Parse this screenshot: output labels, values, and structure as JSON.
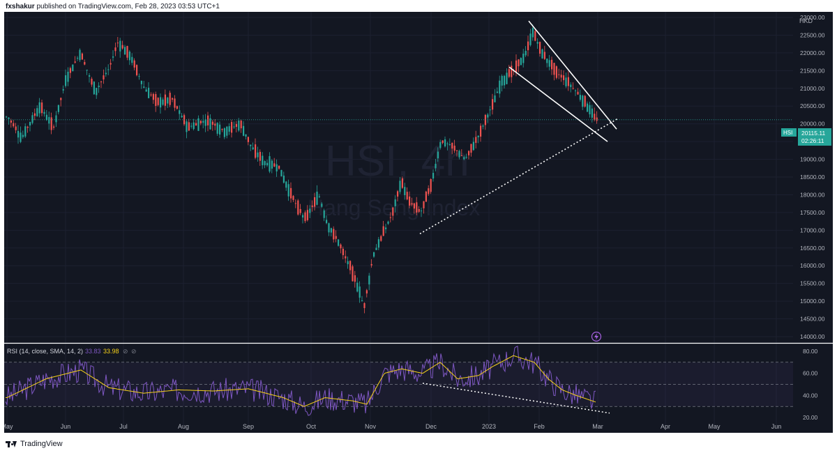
{
  "header": {
    "user": "fxshakur",
    "rest": " published on TradingView.com, Feb 28, 2023 03:53 UTC+1"
  },
  "watermark": {
    "ticker": "HSI, 4h",
    "name": "Hang Seng Index"
  },
  "price_scale": {
    "currency": "HKD",
    "ticks": [
      "23000.00",
      "22500.00",
      "22000.00",
      "21500.00",
      "21000.00",
      "20500.00",
      "20000.00",
      "19500.00",
      "19000.00",
      "18500.00",
      "18000.00",
      "17500.00",
      "17000.00",
      "16500.00",
      "16000.00",
      "15500.00",
      "15000.00",
      "14500.00",
      "14000.00"
    ],
    "current_symbol": "HSI",
    "current_price": "20115.11",
    "countdown": "02:26:11"
  },
  "rsi": {
    "label": "RSI (14, close, SMA, 14, 2)",
    "value": "33.83",
    "ma_value": "33.98",
    "ticks": [
      "80.00",
      "60.00",
      "40.00",
      "20.00"
    ]
  },
  "time_axis": [
    "May",
    "Jun",
    "Jul",
    "Aug",
    "Sep",
    "Oct",
    "Nov",
    "Dec",
    "2023",
    "Feb",
    "Mar",
    "Apr",
    "May",
    "Jun"
  ],
  "footer": {
    "brand": "TradingView"
  },
  "colors": {
    "background": "#131722",
    "up": "#26a69a",
    "down": "#ef5350",
    "rsi_line": "#7e57c2",
    "rsi_ma": "#f7d21a",
    "price_label": "#26a69a"
  },
  "chart_data": {
    "type": "candlestick",
    "symbol": "HSI",
    "timeframe": "4h",
    "ylim": [
      14000,
      23000
    ],
    "key_points": [
      {
        "x": "May",
        "close": 20300
      },
      {
        "x": "Jun",
        "close": 21300
      },
      {
        "x": "Jul",
        "close": 22200
      },
      {
        "x": "Aug",
        "close": 20000
      },
      {
        "x": "Sep",
        "close": 19200
      },
      {
        "x": "Oct",
        "close": 16500
      },
      {
        "x": "Nov",
        "close": 15000
      },
      {
        "x": "Dec",
        "close": 18800
      },
      {
        "x": "2023",
        "close": 20100
      },
      {
        "x": "Feb",
        "close": 22300
      },
      {
        "x": "Mar",
        "close": 20115
      }
    ],
    "rsi_ylim": [
      15,
      85
    ],
    "rsi_levels": [
      70,
      50,
      30
    ]
  }
}
